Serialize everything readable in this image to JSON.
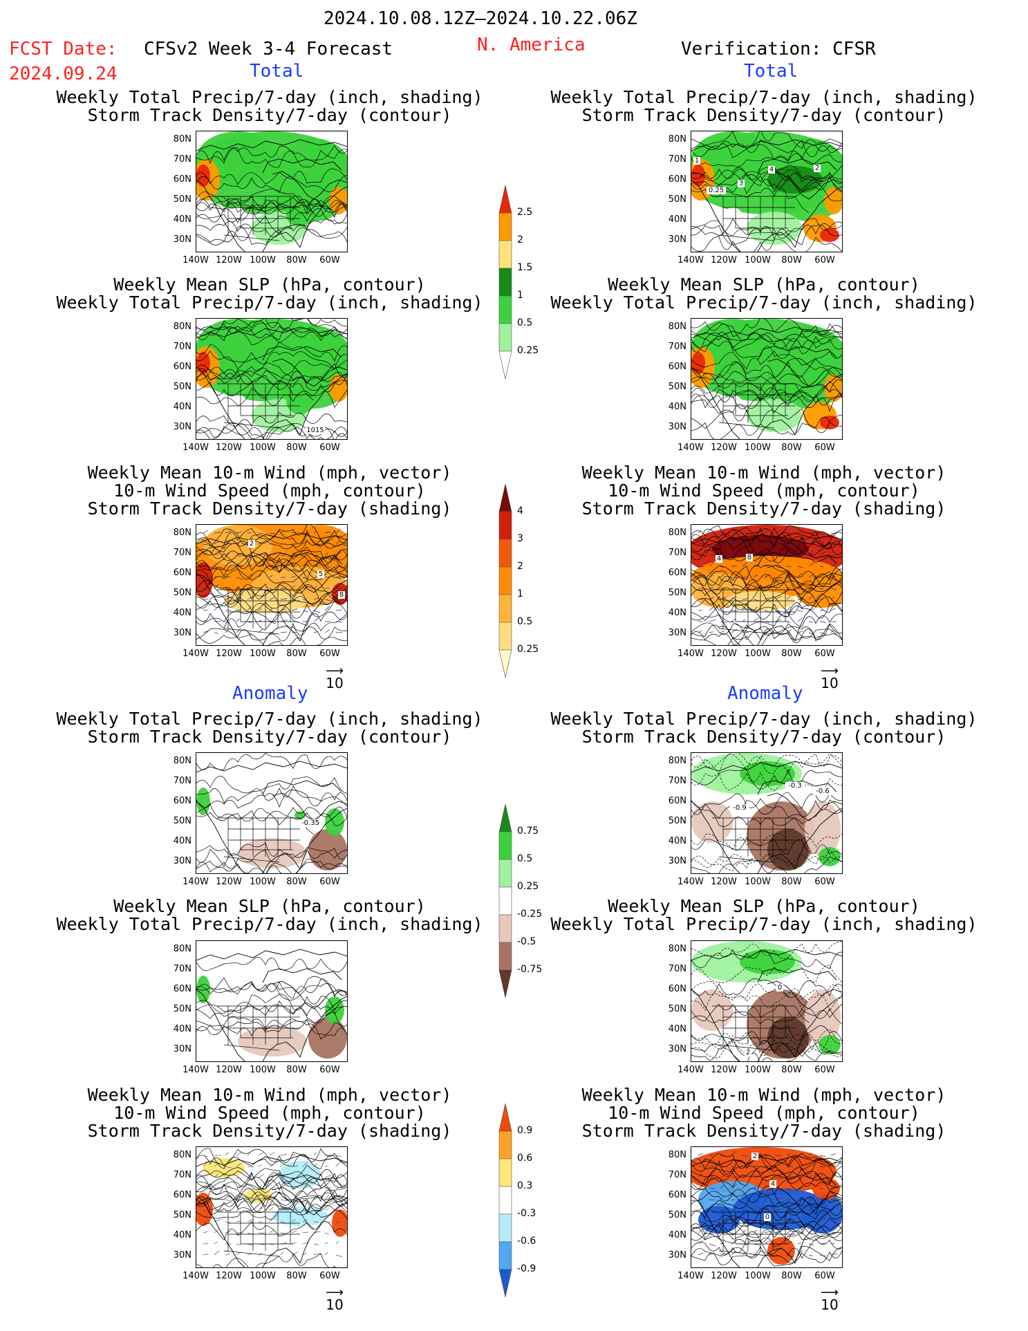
{
  "header": {
    "date_range": "2024.10.08.12Z–2024.10.22.06Z",
    "region": "N. America",
    "fcst_label": "FCST Date:",
    "fcst_date": "2024.09.24",
    "model": "CFSv2 Week 3-4 Forecast",
    "verification": "Verification: CFSR"
  },
  "sections": {
    "total": "Total",
    "anomaly": "Anomaly"
  },
  "titles": {
    "precip_track": [
      "Weekly Total Precip/7-day (inch, shading)",
      "Storm Track Density/7-day (contour)"
    ],
    "slp_precip": [
      "Weekly Mean SLP (hPa, contour)",
      "Weekly Total Precip/7-day (inch, shading)"
    ],
    "wind_track": [
      "Weekly Mean 10-m Wind (mph, vector)",
      "10-m Wind Speed (mph, contour)",
      "Storm Track Density/7-day (shading)"
    ]
  },
  "axes": {
    "lat": [
      "80N",
      "70N",
      "60N",
      "50N",
      "40N",
      "30N"
    ],
    "lon": [
      "140W",
      "120W",
      "100W",
      "80W",
      "60W"
    ]
  },
  "vector_ref": "10",
  "colorbars": {
    "precip_total": {
      "labels": [
        "2.5",
        "2",
        "1.5",
        "1",
        "0.5",
        "0.25"
      ],
      "colors": [
        "#e8280a",
        "#ff9a00",
        "#ffe37a",
        "#178a17",
        "#3cd23c",
        "#9ef29e",
        "#ffffff"
      ]
    },
    "track_total": {
      "labels": [
        "4",
        "3",
        "2",
        "1",
        "0.5",
        "0.25"
      ],
      "colors": [
        "#7a0a0a",
        "#d21e0a",
        "#f05a0a",
        "#ff8c00",
        "#ffb23c",
        "#ffdc82",
        "#fffac8"
      ]
    },
    "precip_anom": {
      "labels": [
        "0.75",
        "0.5",
        "0.25",
        "-0.25",
        "-0.5",
        "-0.75"
      ],
      "colors": [
        "#178a17",
        "#3cd23c",
        "#9ef29e",
        "#ffffff",
        "#e6c8bc",
        "#a87462",
        "#5e3a2c"
      ]
    },
    "track_anom": {
      "labels": [
        "0.9",
        "0.6",
        "0.3",
        "-0.3",
        "-0.6",
        "-0.9"
      ],
      "colors": [
        "#f04a0a",
        "#ffa028",
        "#ffe678",
        "#ffffff",
        "#b4ecfa",
        "#50a8f0",
        "#1e5ad2"
      ]
    }
  },
  "contour_labels": {
    "fcst_slp_total": "1015",
    "obs_track_total": [
      "1",
      "4",
      "2",
      "3",
      "0.25"
    ],
    "fcst_wind_total": [
      "2",
      "5",
      "8"
    ],
    "obs_wind_total": [
      "4",
      "8"
    ],
    "fcst_precip_anom": "-0.35",
    "obs_precip_anom": [
      "-0.3",
      "-0.6",
      "-0.9"
    ],
    "obs_slp_anom": [
      "0",
      "2"
    ],
    "obs_wind_anom": [
      "2",
      "4",
      "0"
    ]
  }
}
